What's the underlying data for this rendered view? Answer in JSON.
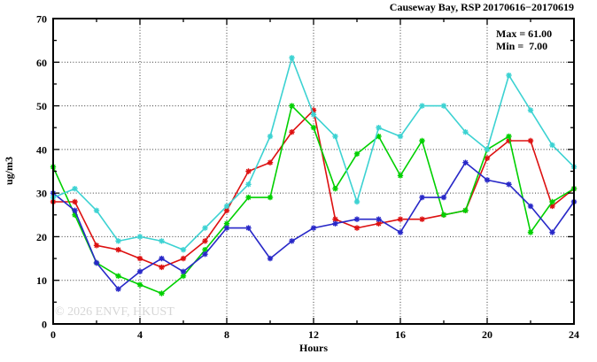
{
  "title": "Causeway Bay, RSP 20170616−20170619",
  "annotations": {
    "max_label": "Max = 61.00",
    "min_label": "Min =  7.00"
  },
  "watermark": "© 2026 ENVF, HKUST",
  "chart_data": {
    "type": "line",
    "title": "Causeway Bay, RSP 20170616−20170619",
    "xlabel": "Hours",
    "ylabel": "ug/m3",
    "xlim": [
      0,
      24
    ],
    "ylim": [
      0,
      70
    ],
    "xtick_major": 4,
    "xtick_minor": 2,
    "ytick_major": 10,
    "ytick_minor": 5,
    "grid": "dotted lines at major ticks, mirrored inward ticks on all four sides",
    "legend_position": "none (Max/Min annotation box top-right inside plot)",
    "max_value": 61.0,
    "min_value": 7.0,
    "x": [
      0,
      1,
      2,
      3,
      4,
      5,
      6,
      7,
      8,
      9,
      10,
      11,
      12,
      13,
      14,
      15,
      16,
      17,
      18,
      19,
      20,
      21,
      22,
      23,
      24
    ],
    "series": [
      {
        "name": "red",
        "color": "#dd1111",
        "values": [
          28,
          28,
          18,
          17,
          15,
          13,
          15,
          19,
          26,
          35,
          37,
          44,
          49,
          24,
          22,
          23,
          24,
          24,
          25,
          26,
          38,
          42,
          42,
          27,
          31
        ]
      },
      {
        "name": "green",
        "color": "#00d000",
        "values": [
          36,
          25,
          14,
          11,
          9,
          7,
          11,
          17,
          23,
          29,
          29,
          50,
          45,
          31,
          39,
          43,
          34,
          42,
          25,
          26,
          40,
          43,
          21,
          28,
          31
        ]
      },
      {
        "name": "blue",
        "color": "#2828c8",
        "values": [
          30,
          26,
          14,
          8,
          12,
          15,
          12,
          16,
          22,
          22,
          15,
          19,
          22,
          23,
          24,
          24,
          21,
          29,
          29,
          37,
          33,
          32,
          27,
          21,
          28
        ]
      },
      {
        "name": "cyan",
        "color": "#3cd2d2",
        "values": [
          29,
          31,
          26,
          19,
          20,
          19,
          17,
          22,
          27,
          32,
          43,
          61,
          48,
          43,
          28,
          45,
          43,
          50,
          50,
          44,
          40,
          57,
          49,
          41,
          36
        ]
      }
    ]
  }
}
